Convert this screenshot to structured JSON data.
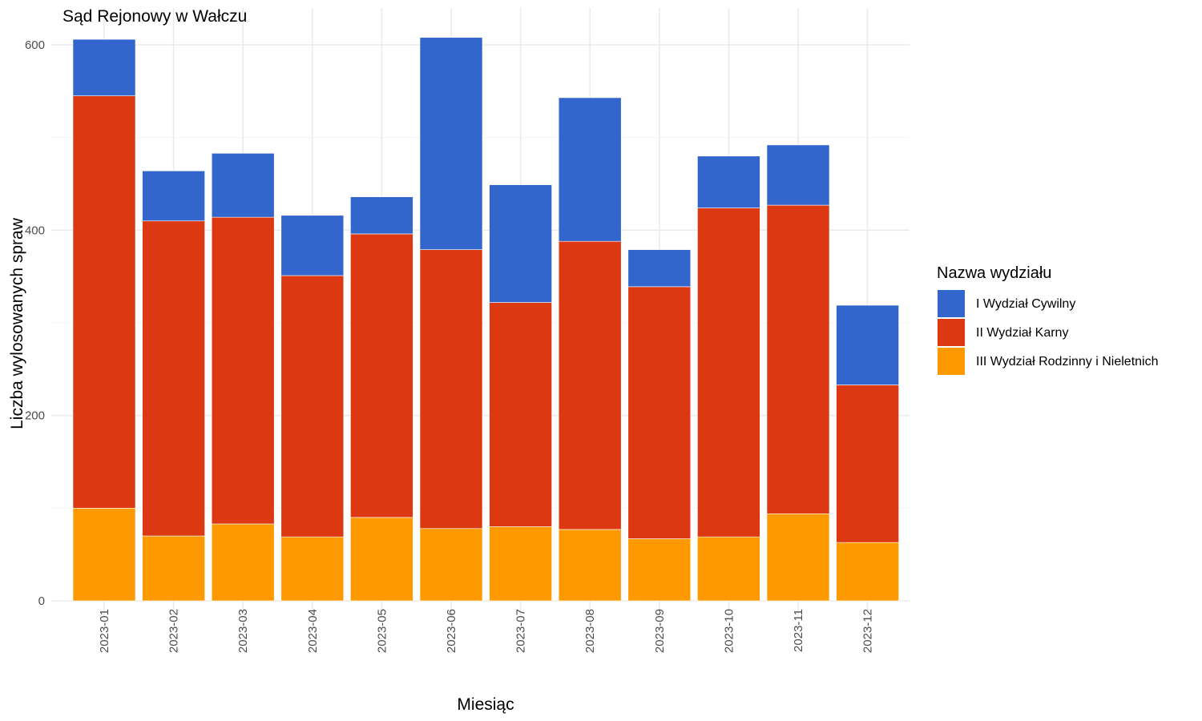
{
  "chart_data": {
    "type": "bar",
    "stacked": true,
    "title": "Sąd Rejonowy w Wałczu",
    "xlabel": "Miesiąc",
    "ylabel": "Liczba wylosowanych spraw",
    "ylim": [
      0,
      640
    ],
    "yticks": [
      0,
      200,
      400,
      600
    ],
    "grid": true,
    "legend_position": "right",
    "legend_title": "Nazwa wydziału",
    "categories": [
      "2023-01",
      "2023-02",
      "2023-03",
      "2023-04",
      "2023-05",
      "2023-06",
      "2023-07",
      "2023-08",
      "2023-09",
      "2023-10",
      "2023-11",
      "2023-12"
    ],
    "series": [
      {
        "name": "III Wydział Rodzinny i Nieletnich",
        "color": "#FF9900",
        "values": [
          100,
          70,
          83,
          69,
          90,
          78,
          80,
          77,
          67,
          69,
          94,
          63
        ]
      },
      {
        "name": "II Wydział Karny",
        "color": "#DC3912",
        "values": [
          445,
          340,
          331,
          282,
          306,
          301,
          242,
          311,
          272,
          355,
          333,
          170
        ]
      },
      {
        "name": "I Wydział Cywilny",
        "color": "#3366CC",
        "values": [
          61,
          54,
          69,
          65,
          40,
          229,
          127,
          155,
          40,
          56,
          65,
          86
        ]
      }
    ],
    "legend_order": [
      "I Wydział Cywilny",
      "II Wydział Karny",
      "III Wydział Rodzinny i Nieletnich"
    ]
  }
}
